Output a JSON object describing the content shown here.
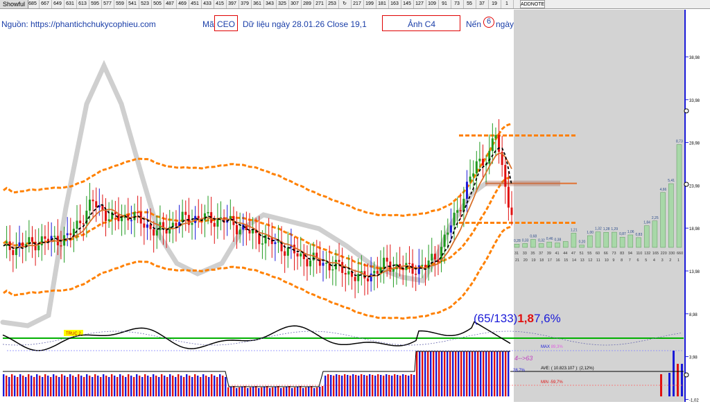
{
  "toolbar": {
    "tab_label": "Showful",
    "cells": [
      "685",
      "667",
      "649",
      "631",
      "613",
      "595",
      "577",
      "559",
      "541",
      "523",
      "505",
      "487",
      "469",
      "451",
      "433",
      "415",
      "397",
      "379",
      "361",
      "343",
      "325",
      "307",
      "289",
      "271",
      "253",
      "",
      "217",
      "199",
      "181",
      "163",
      "145",
      "127",
      "109",
      "91",
      "73",
      "55",
      "37",
      "19",
      "1"
    ],
    "addnote_label": "ADDNOTE"
  },
  "header": {
    "source_prefix": "Nguồn: ",
    "source_url": "https://phantichchukycophieu.com",
    "ma_label": "Mã",
    "ticker": "CEO",
    "data_text": "Dữ liệu ngày 28.01.26  Close 19,1",
    "image_label": "Ảnh C4",
    "candle_prefix": "Nến",
    "candle_count": "6",
    "candle_suffix": "ngày"
  },
  "indicator": {
    "ratio_text": "(65/133)",
    "value_red": "1,8",
    "value_blue": "7,6%",
    "truc_label": "TRUC 2",
    "max_label": "MAX",
    "max_value": "89,3%",
    "range_label": "4-->63",
    "ave_label": "AVE: ( 10.823.107 ): (2,12%)",
    "current_label": "28,7%",
    "min_label": "MIN",
    "min_value": "-59,7%"
  },
  "colors": {
    "up": "#1a1ad8",
    "down": "#e01010",
    "green_candle": "#1f9a1f",
    "band": "#ff8000",
    "band_inner": "#ff0000",
    "gray_cycle": "#cfcfcf",
    "shade": "#d3d3d3",
    "histo_bar": "#a8d8a8",
    "green_line": "#00b000"
  },
  "chart_data": {
    "type": "line",
    "title": "",
    "xlabel": "",
    "ylabel": "",
    "ylim": [
      -1.02,
      43
    ],
    "y_ticks": [
      "38,98",
      "33,98",
      "28,98",
      "23,98",
      "18,98",
      "13,98",
      "8,98",
      "3,98",
      "-1,02"
    ],
    "current_price": 19.1,
    "forecast_histogram": {
      "bar_values": [
        "0,28",
        "0,33",
        "0,68",
        "0,32",
        "0,46",
        "0,38",
        "",
        "1,21",
        "0,20",
        "1,00",
        "1,32",
        "1,28",
        "1,29",
        "0,87",
        "1,06",
        "0,83",
        "1,84",
        "2,25",
        "4,66",
        "5,41",
        "8,73"
      ],
      "counts": [
        "31",
        "33",
        "35",
        "37",
        "39",
        "41",
        "44",
        "47",
        "51",
        "55",
        "60",
        "66",
        "73",
        "83",
        "94",
        "110",
        "132",
        "165",
        "220",
        "330",
        "660"
      ],
      "periods": [
        "21",
        "20",
        "19",
        "18",
        "17",
        "16",
        "15",
        "14",
        "13",
        "12",
        "11",
        "10",
        "9",
        "8",
        "7",
        "6",
        "5",
        "4",
        "3",
        "2",
        "1"
      ]
    }
  }
}
